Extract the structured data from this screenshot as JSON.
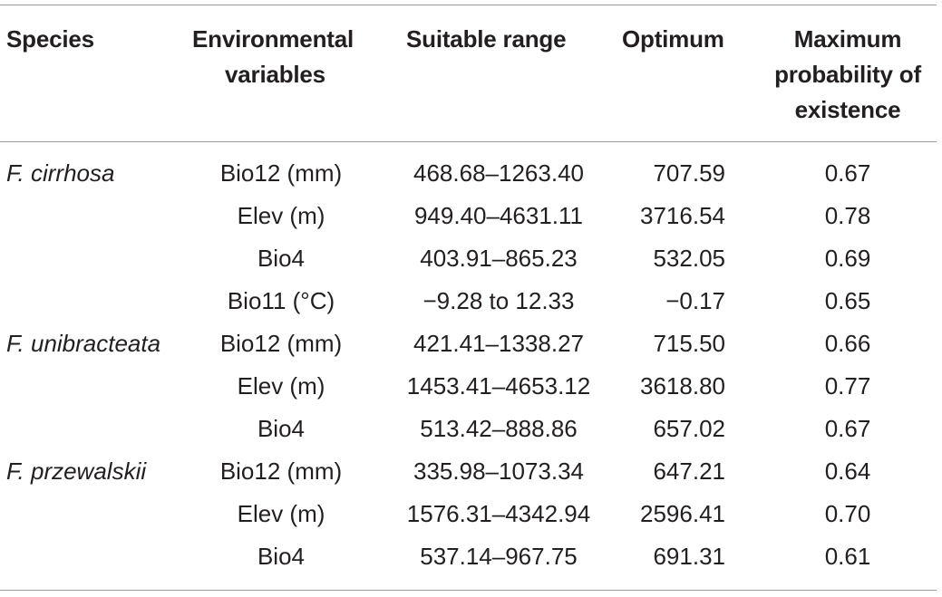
{
  "headers": {
    "species": "Species",
    "env_line1": "Environmental",
    "env_line2": "variables",
    "range": "Suitable range",
    "optimum": "Optimum",
    "max_line1": "Maximum",
    "max_line2": "probability of",
    "max_line3": "existence"
  },
  "rows": [
    {
      "species": "F. cirrhosa",
      "variable": "Bio12 (mm)",
      "range": "468.68–1263.40",
      "optimum": "707.59",
      "max_prob": "0.67"
    },
    {
      "species": "",
      "variable": "Elev (m)",
      "range": "949.40–4631.11",
      "optimum": "3716.54",
      "max_prob": "0.78"
    },
    {
      "species": "",
      "variable": "Bio4",
      "range": "403.91–865.23",
      "optimum": "532.05",
      "max_prob": "0.69"
    },
    {
      "species": "",
      "variable": "Bio11 (°C)",
      "range": "−9.28 to 12.33",
      "optimum": "−0.17",
      "max_prob": "0.65"
    },
    {
      "species": "F. unibracteata",
      "variable": "Bio12 (mm)",
      "range": "421.41–1338.27",
      "optimum": "715.50",
      "max_prob": "0.66"
    },
    {
      "species": "",
      "variable": "Elev (m)",
      "range": "1453.41–4653.12",
      "optimum": "3618.80",
      "max_prob": "0.77"
    },
    {
      "species": "",
      "variable": "Bio4",
      "range": "513.42–888.86",
      "optimum": "657.02",
      "max_prob": "0.67"
    },
    {
      "species": "F. przewalskii",
      "variable": "Bio12 (mm)",
      "range": "335.98–1073.34",
      "optimum": "647.21",
      "max_prob": "0.64"
    },
    {
      "species": "",
      "variable": "Elev (m)",
      "range": "1576.31–4342.94",
      "optimum": "2596.41",
      "max_prob": "0.70"
    },
    {
      "species": "",
      "variable": "Bio4",
      "range": "537.14–967.75",
      "optimum": "691.31",
      "max_prob": "0.61"
    }
  ]
}
